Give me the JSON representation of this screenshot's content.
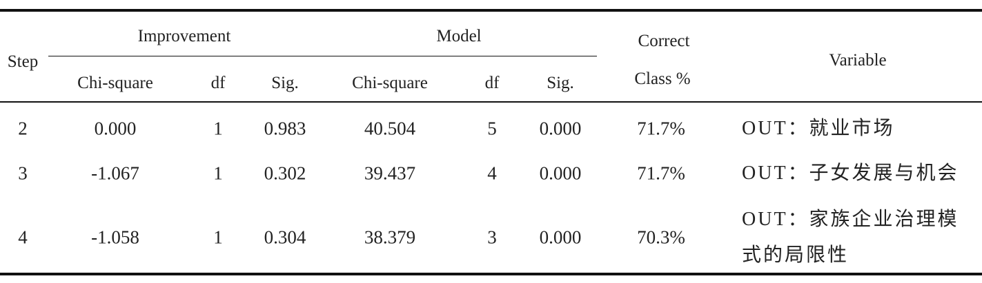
{
  "table": {
    "header": {
      "step": "Step",
      "groups": [
        "Improvement",
        "Model"
      ],
      "subcolumns": [
        "Chi-square",
        "df",
        "Sig.",
        "Chi-square",
        "df",
        "Sig."
      ],
      "correct": [
        "Correct",
        "Class %"
      ],
      "variable": "Variable"
    },
    "rows": [
      [
        "2",
        "0.000",
        "1",
        "0.983",
        "40.504",
        "5",
        "0.000",
        "71.7%",
        "OUT：就业市场"
      ],
      [
        "3",
        "-1.067",
        "1",
        "0.302",
        "39.437",
        "4",
        "0.000",
        "71.7%",
        "OUT：子女发展与机会"
      ],
      [
        "4",
        "-1.058",
        "1",
        "0.304",
        "38.379",
        "3",
        "0.000",
        "70.3%",
        "OUT：家族企业治理模式的局限性"
      ]
    ]
  }
}
